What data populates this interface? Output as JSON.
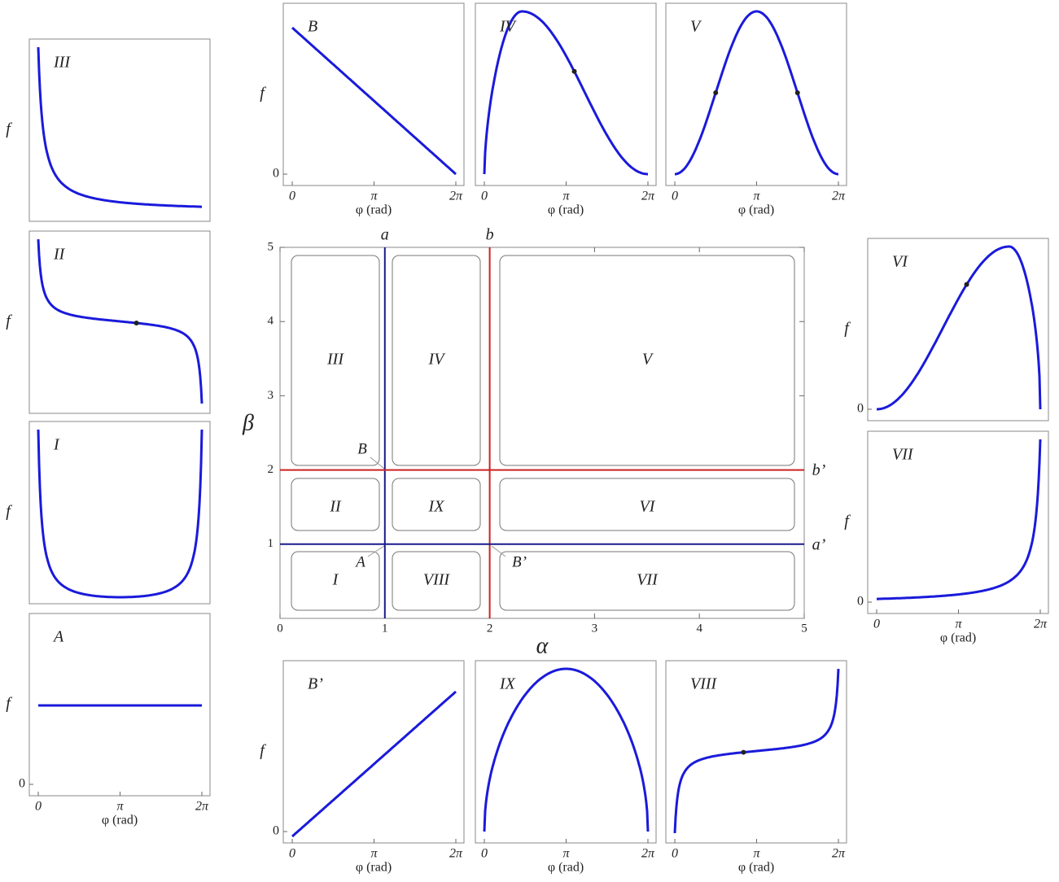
{
  "chart_data": [
    {
      "type": "regions",
      "xlabel": "α",
      "ylabel": "β",
      "xlim": [
        0,
        5
      ],
      "ylim": [
        0,
        5
      ],
      "xticks": [
        0,
        1,
        2,
        3,
        4,
        5
      ],
      "yticks": [
        1,
        2,
        3,
        4,
        5
      ],
      "lines": [
        {
          "name": "a",
          "orient": "vertical",
          "value": 1,
          "color": "#1a1a8c"
        },
        {
          "name": "b",
          "orient": "vertical",
          "value": 2,
          "color": "#cc2222"
        },
        {
          "name": "b’",
          "orient": "horizontal",
          "value": 2,
          "color": "#cc2222"
        },
        {
          "name": "a’",
          "orient": "horizontal",
          "value": 1,
          "color": "#1a1a8c"
        }
      ],
      "regions": [
        "III",
        "IV",
        "V",
        "II",
        "IX",
        "VI",
        "I",
        "VIII",
        "VII"
      ],
      "point_labels": [
        "B",
        "A",
        "B’"
      ]
    },
    {
      "type": "line",
      "title": "III",
      "ylabel": "f"
    },
    {
      "type": "line",
      "title": "II",
      "ylabel": "f"
    },
    {
      "type": "line",
      "title": "I",
      "ylabel": "f"
    },
    {
      "type": "line",
      "title": "A",
      "ylabel": "f",
      "xlabel": "φ (rad)",
      "xlim": [
        -0.344,
        6.596
      ],
      "xticks": [
        0,
        {
          "value": 3.1416,
          "label": "π"
        },
        {
          "value": 6.2832,
          "label": "2π"
        }
      ],
      "yticks": [
        0
      ]
    },
    {
      "type": "line",
      "title": "B",
      "ylabel": "f",
      "xlabel": "φ (rad)",
      "xlim": [
        -0.344,
        6.596
      ],
      "xticks": [
        0,
        {
          "value": 3.1416,
          "label": "π"
        },
        {
          "value": 6.2832,
          "label": "2π"
        }
      ],
      "yticks": [
        0
      ]
    },
    {
      "type": "line",
      "title": "IV",
      "xlabel": "φ (rad)",
      "xlim": [
        -0.344,
        6.596
      ],
      "xticks": [
        0,
        {
          "value": 3.1416,
          "label": "π"
        },
        {
          "value": 6.2832,
          "label": "2π"
        }
      ]
    },
    {
      "type": "line",
      "title": "V",
      "xlabel": "φ (rad)",
      "xlim": [
        -0.344,
        6.596
      ],
      "xticks": [
        0,
        {
          "value": 3.1416,
          "label": "π"
        },
        {
          "value": 6.2832,
          "label": "2π"
        }
      ]
    },
    {
      "type": "line",
      "title": "VI",
      "ylabel": "f",
      "yticks": [
        0
      ]
    },
    {
      "type": "line",
      "title": "VII",
      "ylabel": "f",
      "xlabel": "φ (rad)",
      "xlim": [
        -0.344,
        6.596
      ],
      "xticks": [
        0,
        {
          "value": 3.1416,
          "label": "π"
        },
        {
          "value": 6.2832,
          "label": "2π"
        }
      ],
      "yticks": [
        0
      ]
    },
    {
      "type": "line",
      "title": "B’",
      "ylabel": "f",
      "xlabel": "φ (rad)",
      "xlim": [
        -0.344,
        6.596
      ],
      "xticks": [
        0,
        {
          "value": 3.1416,
          "label": "π"
        },
        {
          "value": 6.2832,
          "label": "2π"
        }
      ],
      "yticks": [
        0
      ]
    },
    {
      "type": "line",
      "title": "IX",
      "xlabel": "φ (rad)",
      "xlim": [
        -0.344,
        6.596
      ],
      "xticks": [
        0,
        {
          "value": 3.1416,
          "label": "π"
        },
        {
          "value": 6.2832,
          "label": "2π"
        }
      ]
    },
    {
      "type": "line",
      "title": "VIII",
      "xlabel": "φ (rad)",
      "xlim": [
        -0.344,
        6.596
      ],
      "xticks": [
        0,
        {
          "value": 3.1416,
          "label": "π"
        },
        {
          "value": 6.2832,
          "label": "2π"
        }
      ]
    }
  ]
}
